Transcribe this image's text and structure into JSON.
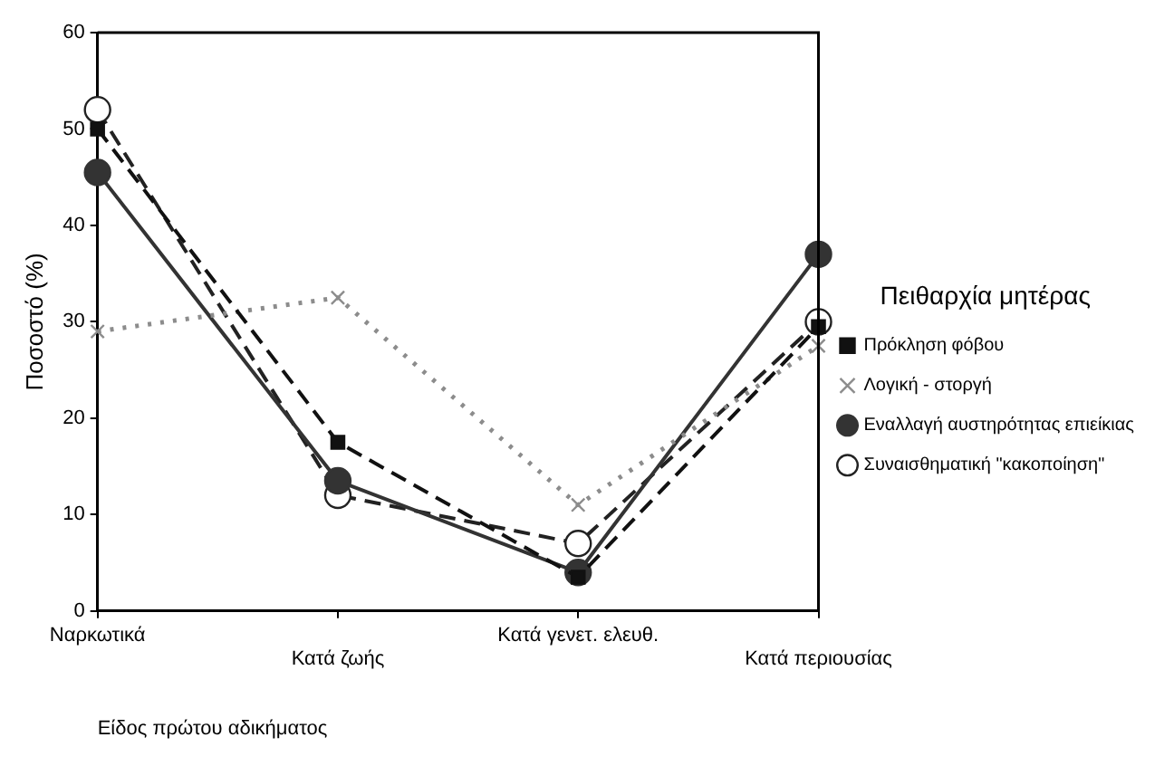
{
  "chart_data": {
    "type": "line",
    "xlabel": "Είδος πρώτου αδικήματος",
    "ylabel": "Ποσοστό (%)",
    "legend_title": "Πειθαρχία μητέρας",
    "categories": [
      "Ναρκωτικά",
      "Κατά ζωής",
      "Κατά γενετ. ελευθ.",
      "Κατά περιουσίας"
    ],
    "series": [
      {
        "name": "Πρόκληση φόβου",
        "color": "#111111",
        "values": [
          50,
          17.5,
          3.5,
          29.5
        ],
        "marker": "square",
        "line_style": "dashed"
      },
      {
        "name": "Λογική - στοργή",
        "color": "#8c8c8c",
        "values": [
          29,
          32.5,
          11,
          27.5
        ],
        "marker": "cross",
        "line_style": "dotted"
      },
      {
        "name": "Εναλλαγή αυστηρότητας επιείκιας",
        "color": "#333333",
        "values": [
          45.5,
          13.5,
          4,
          37
        ],
        "marker": "circle",
        "line_style": "solid"
      },
      {
        "name": "Συναισθηματική \"κακοποίηση\"",
        "color": "#222222",
        "values": [
          52,
          12,
          7,
          30
        ],
        "marker": "circle",
        "line_style": "dashed"
      }
    ],
    "ylim": [
      0,
      60
    ],
    "yticks": [
      0,
      10,
      20,
      30,
      40,
      50,
      60
    ],
    "grid": false,
    "legend": "right"
  }
}
